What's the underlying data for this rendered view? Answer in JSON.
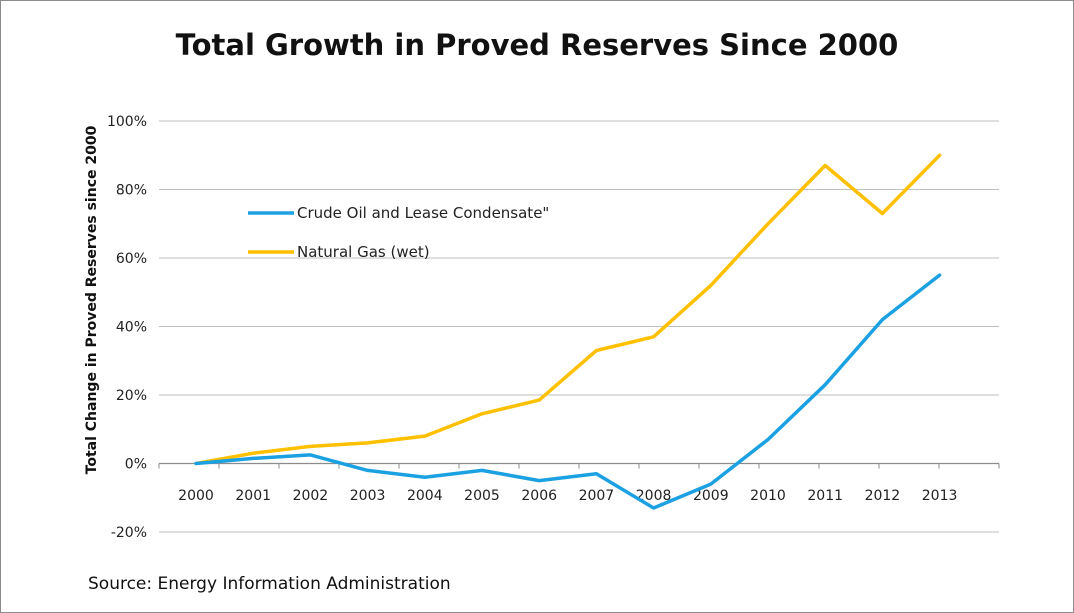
{
  "chart_data": {
    "type": "line",
    "title": "Total Growth in Proved Reserves Since 2000",
    "ylabel": "Total  Change in Proved Reserves since 2000",
    "xlabel": "",
    "source": "Source: Energy Information Administration",
    "x": [
      "2000",
      "2001",
      "2002",
      "2003",
      "2004",
      "2005",
      "2006",
      "2007",
      "2008",
      "2009",
      "2010",
      "2011",
      "2012",
      "2013"
    ],
    "ylim": [
      -20,
      100
    ],
    "yticks": [
      "-20%",
      "0%",
      "20%",
      "40%",
      "60%",
      "80%",
      "100%"
    ],
    "ytick_values": [
      -20,
      0,
      20,
      40,
      60,
      80,
      100
    ],
    "grid": true,
    "legend_position": "upper-left",
    "series": [
      {
        "name": "Crude Oil and Lease Condensate\"",
        "color": "#1ba1e2",
        "values": [
          0,
          1.5,
          2.5,
          -2,
          -4,
          -2,
          -5,
          -3,
          -13,
          -6,
          7,
          23,
          42,
          55
        ]
      },
      {
        "name": "Natural Gas (wet)",
        "color": "#ffc000",
        "values": [
          0,
          3,
          5,
          6,
          8,
          14.5,
          18.5,
          33,
          37,
          52,
          70,
          87,
          73,
          90
        ]
      }
    ]
  }
}
